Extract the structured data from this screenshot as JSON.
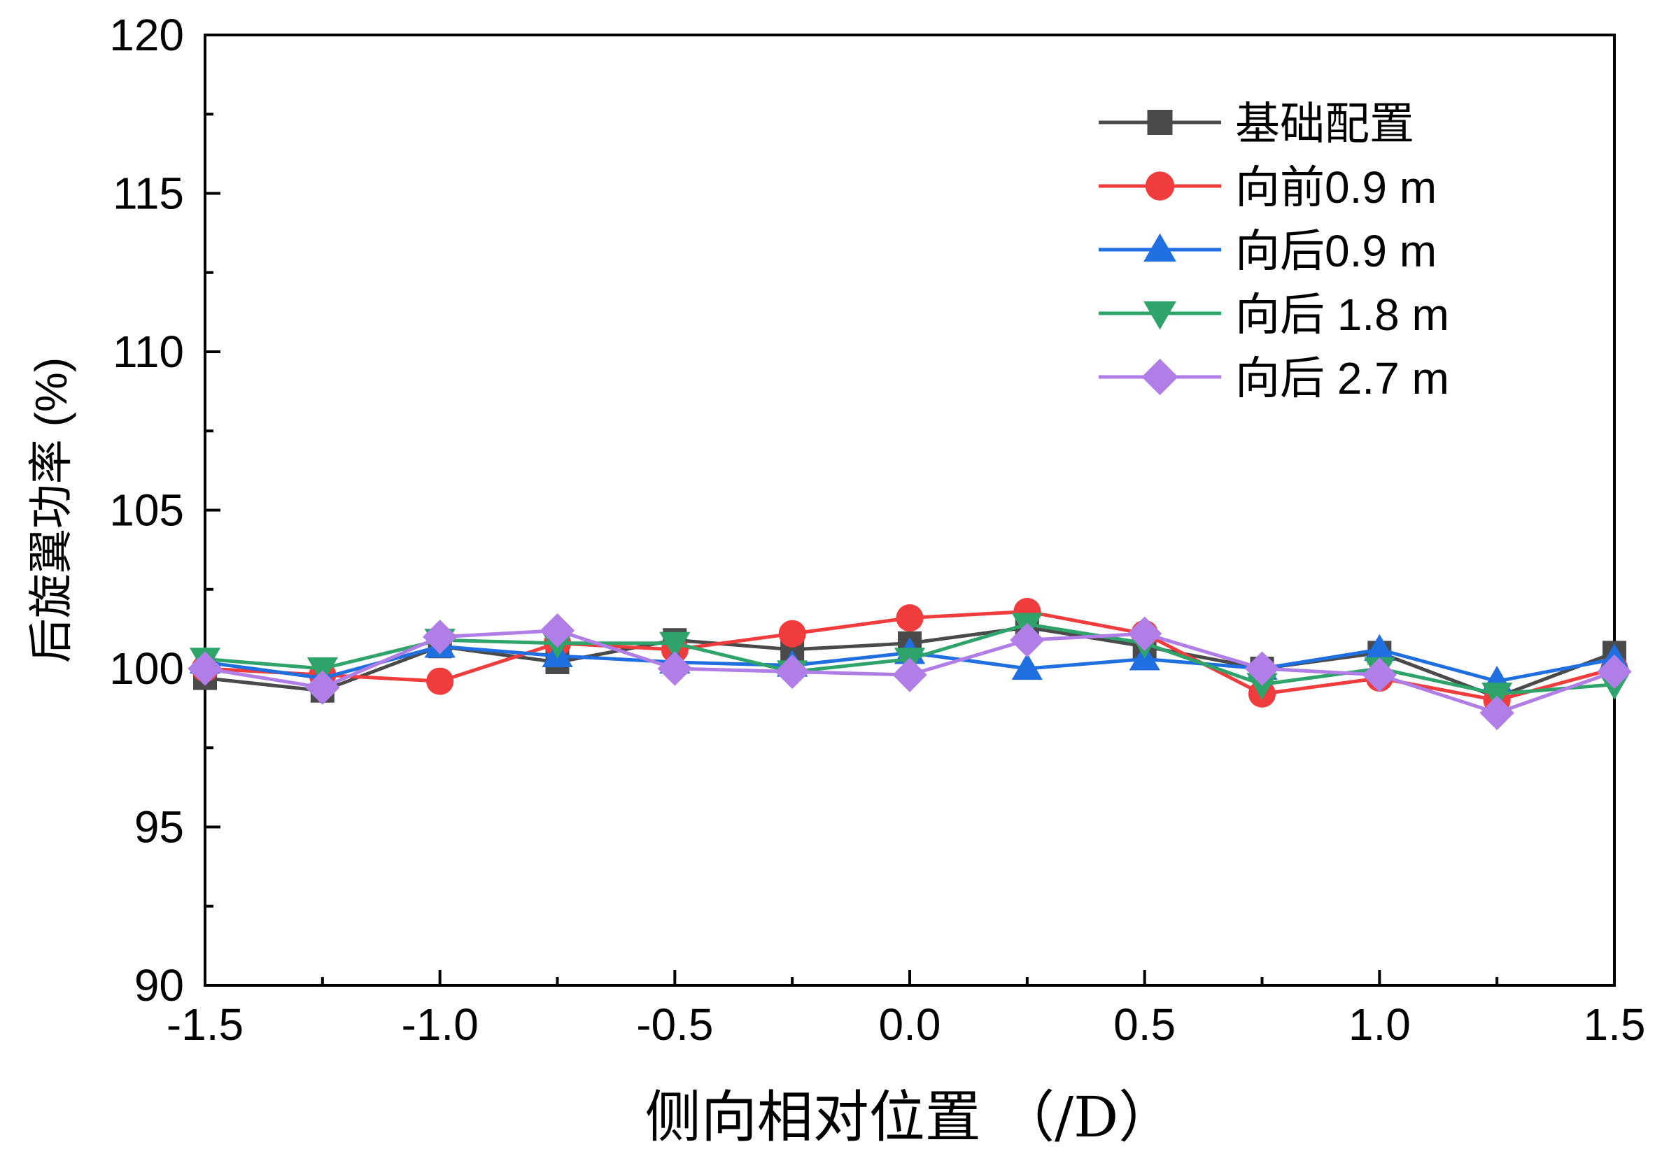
{
  "chart_data": {
    "type": "line",
    "title": "",
    "xlabel": "侧向相对位置 （/D）",
    "ylabel": "后旋翼功率 (%)",
    "xlim": [
      -1.5,
      1.5
    ],
    "ylim": [
      90,
      120
    ],
    "x_ticks": [
      -1.5,
      -1.0,
      -0.5,
      0.0,
      0.5,
      1.0,
      1.5
    ],
    "x_tick_labels": [
      "-1.5",
      "-1.0",
      "-0.5",
      "0.0",
      "0.5",
      "1.0",
      "1.5"
    ],
    "y_ticks": [
      90,
      95,
      100,
      105,
      110,
      115,
      120
    ],
    "y_tick_labels": [
      "90",
      "95",
      "100",
      "105",
      "110",
      "115",
      "120"
    ],
    "grid": false,
    "legend_position": "top-right",
    "x": [
      -1.5,
      -1.25,
      -1.0,
      -0.75,
      -0.5,
      -0.25,
      0.0,
      0.25,
      0.5,
      0.75,
      1.0,
      1.25,
      1.5
    ],
    "series": [
      {
        "name": "基础配置",
        "color": "#4a4a4a",
        "marker": "square",
        "values": [
          99.7,
          99.3,
          100.7,
          100.2,
          100.9,
          100.6,
          100.8,
          101.3,
          100.7,
          100.0,
          100.5,
          99.1,
          100.5
        ]
      },
      {
        "name": "向前0.9 m",
        "color": "#f03c3c",
        "marker": "circle",
        "values": [
          100.0,
          99.8,
          99.6,
          100.8,
          100.6,
          101.1,
          101.6,
          101.8,
          101.1,
          99.2,
          99.7,
          99.0,
          100.0
        ]
      },
      {
        "name": "向后0.9 m",
        "color": "#1f6fe0",
        "marker": "triangle-up",
        "values": [
          100.2,
          99.7,
          100.7,
          100.4,
          100.2,
          100.1,
          100.5,
          100.0,
          100.3,
          100.0,
          100.6,
          99.6,
          100.3
        ]
      },
      {
        "name": "向后 1.8 m",
        "color": "#2ea36a",
        "marker": "triangle-down",
        "values": [
          100.3,
          100.0,
          100.9,
          100.8,
          100.8,
          99.9,
          100.3,
          101.4,
          100.8,
          99.5,
          100.0,
          99.2,
          99.5
        ]
      },
      {
        "name": "向后 2.7 m",
        "color": "#b07ee6",
        "marker": "diamond",
        "values": [
          100.0,
          99.4,
          101.0,
          101.2,
          100.0,
          99.9,
          99.8,
          100.9,
          101.1,
          100.0,
          99.8,
          98.6,
          99.9
        ]
      }
    ]
  }
}
